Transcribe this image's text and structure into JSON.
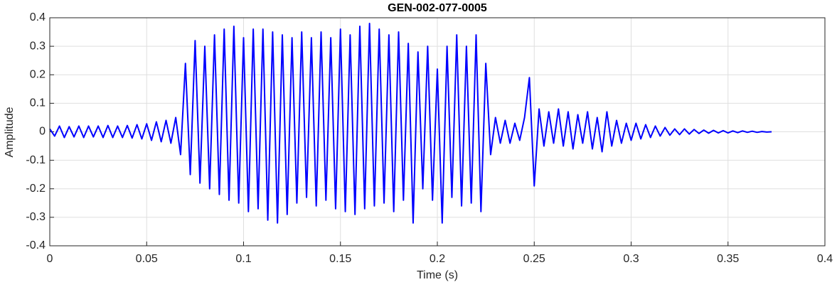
{
  "chart_data": {
    "type": "line",
    "title": "GEN-002-077-0005",
    "xlabel": "Time (s)",
    "ylabel": "Amplitude",
    "xlim": [
      0,
      0.4
    ],
    "ylim": [
      -0.4,
      0.4
    ],
    "xticks": [
      0,
      0.05,
      0.1,
      0.15,
      0.2,
      0.25,
      0.3,
      0.35,
      0.4
    ],
    "yticks": [
      -0.4,
      -0.3,
      -0.2,
      -0.1,
      0,
      0.1,
      0.2,
      0.3,
      0.4
    ],
    "grid": true,
    "x": [
      0,
      0.0025,
      0.005,
      0.0075,
      0.01,
      0.0125,
      0.015,
      0.0175,
      0.02,
      0.0225,
      0.025,
      0.0275,
      0.03,
      0.0325,
      0.035,
      0.0375,
      0.04,
      0.0425,
      0.045,
      0.0475,
      0.05,
      0.0525,
      0.055,
      0.0575,
      0.06,
      0.0625,
      0.065,
      0.0675,
      0.07,
      0.0725,
      0.075,
      0.0775,
      0.08,
      0.0825,
      0.085,
      0.0875,
      0.09,
      0.0925,
      0.095,
      0.0975,
      0.1,
      0.1025,
      0.105,
      0.1075,
      0.11,
      0.1125,
      0.115,
      0.1175,
      0.12,
      0.1225,
      0.125,
      0.1275,
      0.13,
      0.1325,
      0.135,
      0.1375,
      0.14,
      0.1425,
      0.145,
      0.1475,
      0.15,
      0.1525,
      0.155,
      0.1575,
      0.16,
      0.1625,
      0.165,
      0.1675,
      0.17,
      0.1725,
      0.175,
      0.1775,
      0.18,
      0.1825,
      0.185,
      0.1875,
      0.19,
      0.1925,
      0.195,
      0.1975,
      0.2,
      0.2025,
      0.205,
      0.2075,
      0.21,
      0.2125,
      0.215,
      0.2175,
      0.22,
      0.2225,
      0.225,
      0.2275,
      0.23,
      0.2325,
      0.235,
      0.2375,
      0.24,
      0.2425,
      0.245,
      0.2475,
      0.25,
      0.2525,
      0.255,
      0.2575,
      0.26,
      0.2625,
      0.265,
      0.2675,
      0.27,
      0.2725,
      0.275,
      0.2775,
      0.28,
      0.2825,
      0.285,
      0.2875,
      0.29,
      0.2925,
      0.295,
      0.2975,
      0.3,
      0.3025,
      0.305,
      0.3075,
      0.31,
      0.3125,
      0.315,
      0.3175,
      0.32,
      0.3225,
      0.325,
      0.3275,
      0.33,
      0.3325,
      0.335,
      0.3375,
      0.34,
      0.3425,
      0.345,
      0.3475,
      0.35,
      0.3525,
      0.355,
      0.3575,
      0.36,
      0.3625,
      0.365,
      0.3675,
      0.37,
      0.3725
    ],
    "series": [
      {
        "color": "#0000ff",
        "values": [
          0.01,
          -0.015,
          0.02,
          -0.02,
          0.018,
          -0.018,
          0.02,
          -0.02,
          0.02,
          -0.018,
          0.02,
          -0.02,
          0.022,
          -0.02,
          0.02,
          -0.02,
          0.022,
          -0.022,
          0.025,
          -0.025,
          0.028,
          -0.03,
          0.035,
          -0.035,
          0.04,
          -0.04,
          0.05,
          -0.08,
          0.24,
          -0.15,
          0.32,
          -0.18,
          0.3,
          -0.2,
          0.34,
          -0.22,
          0.36,
          -0.24,
          0.37,
          -0.25,
          0.33,
          -0.28,
          0.36,
          -0.27,
          0.36,
          -0.31,
          0.35,
          -0.32,
          0.34,
          -0.29,
          0.33,
          -0.25,
          0.35,
          -0.23,
          0.33,
          -0.26,
          0.35,
          -0.24,
          0.33,
          -0.27,
          0.36,
          -0.28,
          0.34,
          -0.29,
          0.37,
          -0.27,
          0.38,
          -0.26,
          0.36,
          -0.25,
          0.34,
          -0.28,
          0.35,
          -0.24,
          0.31,
          -0.32,
          0.28,
          -0.2,
          0.3,
          -0.24,
          0.22,
          -0.32,
          0.3,
          -0.23,
          0.34,
          -0.26,
          0.3,
          -0.25,
          0.34,
          -0.28,
          0.24,
          -0.08,
          0.05,
          -0.04,
          0.04,
          -0.04,
          0.03,
          -0.03,
          0.05,
          0.19,
          -0.19,
          0.08,
          -0.05,
          0.07,
          -0.04,
          0.08,
          -0.05,
          0.07,
          -0.06,
          0.06,
          -0.04,
          0.07,
          -0.06,
          0.05,
          -0.07,
          0.07,
          -0.05,
          0.04,
          -0.04,
          0.03,
          -0.03,
          0.03,
          -0.025,
          0.025,
          -0.02,
          0.02,
          -0.015,
          0.015,
          -0.012,
          0.01,
          -0.01,
          0.01,
          -0.008,
          0.008,
          -0.006,
          0.006,
          -0.005,
          0.005,
          -0.004,
          0.004,
          -0.004,
          0.003,
          -0.003,
          0.003,
          -0.002,
          0.002,
          -0.002,
          0.001,
          -0.001,
          0
        ]
      }
    ]
  }
}
